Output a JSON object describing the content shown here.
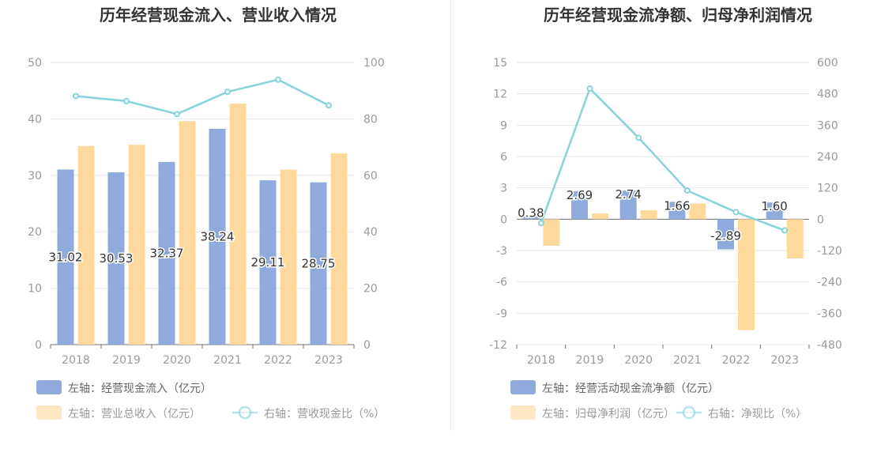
{
  "colors": {
    "blue": "#8eabdc",
    "orange": "#fed99b",
    "cyan": "#86d3d9",
    "grid": "#e0e4ee",
    "axis": "#999999",
    "title": "#333333"
  },
  "chart_data": [
    {
      "type": "bar",
      "title": "历年经营现金流入、营业收入情况",
      "categories": [
        "2018",
        "2019",
        "2020",
        "2021",
        "2022",
        "2023"
      ],
      "y_left": {
        "min": 0,
        "max": 50,
        "ticks": [
          "0",
          "10",
          "20",
          "30",
          "40",
          "50"
        ]
      },
      "y_right": {
        "min": 0,
        "max": 100,
        "ticks": [
          "0",
          "20",
          "40",
          "60",
          "80",
          "100"
        ]
      },
      "series": [
        {
          "name": "左轴：经营现金流入（亿元）",
          "kind": "bar",
          "axis": "left",
          "color": "#8eabdc",
          "values": [
            31.02,
            30.53,
            32.37,
            38.24,
            29.11,
            28.75
          ],
          "labels": [
            "31.02",
            "30.53",
            "32.37",
            "38.24",
            "29.11",
            "28.75"
          ]
        },
        {
          "name": "左轴：营业总收入（亿元）",
          "kind": "bar",
          "axis": "left",
          "color": "#fed99b",
          "values": [
            35.2,
            35.4,
            39.6,
            42.7,
            31.0,
            33.9
          ]
        },
        {
          "name": "右轴：营收现金比（%）",
          "kind": "line",
          "axis": "right",
          "color": "#86d3d9",
          "values": [
            88.1,
            86.3,
            81.7,
            89.6,
            93.9,
            84.8
          ]
        }
      ],
      "legend": "bottom-left"
    },
    {
      "type": "bar",
      "title": "历年经营现金流净额、归母净利润情况",
      "categories": [
        "2018",
        "2019",
        "2020",
        "2021",
        "2022",
        "2023"
      ],
      "y_left": {
        "min": -12,
        "max": 15,
        "ticks": [
          "-12",
          "-9",
          "-6",
          "-3",
          "0",
          "3",
          "6",
          "9",
          "12",
          "15"
        ]
      },
      "y_right": {
        "min": -480,
        "max": 600,
        "ticks": [
          "-480",
          "-360",
          "-240",
          "-120",
          "0",
          "120",
          "240",
          "360",
          "480",
          "600"
        ]
      },
      "series": [
        {
          "name": "左轴：经营活动现金流净额（亿元）",
          "kind": "bar",
          "axis": "left",
          "color": "#8eabdc",
          "values": [
            0.38,
            2.69,
            2.74,
            1.66,
            -2.89,
            1.6
          ],
          "labels": [
            "0.38",
            "2.69",
            "2.74",
            "1.66",
            "-2.89",
            "1.60"
          ]
        },
        {
          "name": "左轴：归母净利润（亿元）",
          "kind": "bar",
          "axis": "left",
          "color": "#fed99b",
          "values": [
            -2.55,
            0.55,
            0.85,
            1.5,
            -10.6,
            -3.75
          ]
        },
        {
          "name": "右轴：净现比（%）",
          "kind": "line",
          "axis": "right",
          "color": "#86d3d9",
          "values": [
            -15,
            500,
            312,
            110,
            27,
            -43
          ]
        }
      ],
      "legend": "bottom-left"
    }
  ]
}
